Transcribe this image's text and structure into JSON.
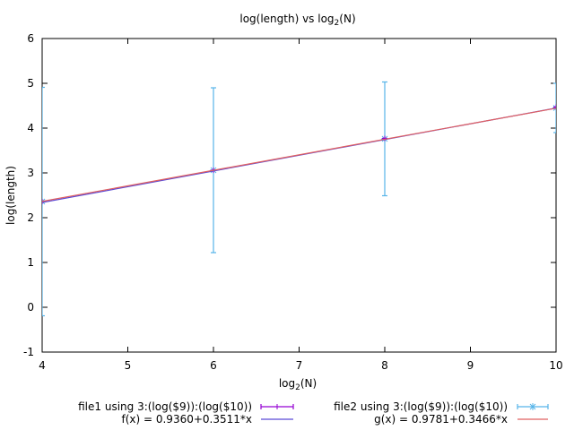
{
  "chart_data": {
    "type": "scatter",
    "title": "log(length) vs log",
    "title_subscript": "2",
    "title_suffix": "(N)",
    "xlabel": "log",
    "xlabel_subscript": "2",
    "xlabel_suffix": "(N)",
    "ylabel": "log(length)",
    "xlim": [
      4,
      10
    ],
    "ylim": [
      -1,
      6
    ],
    "x_ticks": [
      "4",
      "5",
      "6",
      "7",
      "8",
      "9",
      "10"
    ],
    "y_ticks": [
      "-1",
      "0",
      "1",
      "2",
      "3",
      "4",
      "5",
      "6"
    ],
    "grid": false,
    "legend_position": "bottom",
    "series": [
      {
        "name": "file1 using 3:(log($9)):(log($10))",
        "kind": "errorbars",
        "color": "#9400d3",
        "points": [
          {
            "x": 4,
            "y": 2.36,
            "err": 0
          },
          {
            "x": 6,
            "y": 3.06,
            "err": 0
          },
          {
            "x": 8,
            "y": 3.77,
            "err": 0
          },
          {
            "x": 10,
            "y": 4.47,
            "err": 0
          }
        ]
      },
      {
        "name": "f(x) = 0.9360+0.3511*x",
        "kind": "line",
        "color": "#5b4ad6",
        "intercept": 0.936,
        "slope": 0.3511
      },
      {
        "name": "file2 using 3:(log($9)):(log($10))",
        "kind": "errorbars",
        "color": "#56b4e9",
        "points": [
          {
            "x": 4,
            "y": 2.36,
            "err": 2.55
          },
          {
            "x": 6,
            "y": 3.06,
            "err": 1.84
          },
          {
            "x": 8,
            "y": 3.76,
            "err": 1.27
          },
          {
            "x": 10,
            "y": 4.45,
            "err": 0.55
          }
        ]
      },
      {
        "name": "g(x) = 0.9781+0.3466*x",
        "kind": "line",
        "color": "#e06060",
        "intercept": 0.9781,
        "slope": 0.3466
      }
    ]
  }
}
